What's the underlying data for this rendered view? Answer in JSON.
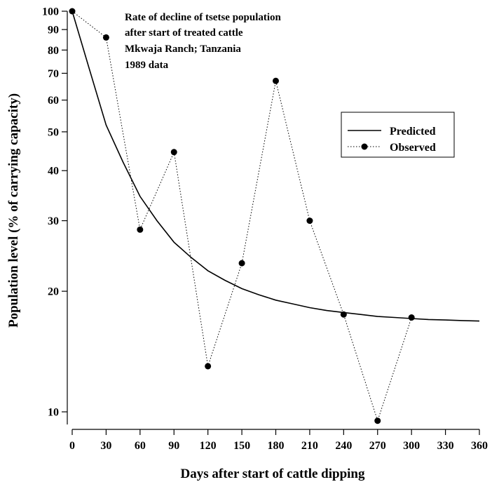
{
  "chart_data": {
    "type": "line",
    "title_lines": [
      "Rate of decline of tsetse population",
      "after start of treated cattle",
      "Mkwaja Ranch; Tanzania",
      "1989 data"
    ],
    "xlabel": "Days after start of cattle dipping",
    "ylabel": "Population level (% of carrying capacity)",
    "x_ticks": [
      0,
      30,
      60,
      90,
      120,
      150,
      180,
      210,
      240,
      270,
      300,
      330,
      360
    ],
    "y_ticks": [
      10,
      20,
      30,
      40,
      50,
      60,
      70,
      80,
      90,
      100
    ],
    "xlim": [
      0,
      360
    ],
    "ylim": [
      9.3,
      100
    ],
    "y_scale": "log",
    "grid": false,
    "legend_position": "right",
    "series": [
      {
        "name": "Predicted",
        "style": "solid",
        "x": [
          0,
          15,
          30,
          45,
          60,
          75,
          90,
          105,
          120,
          135,
          150,
          165,
          180,
          195,
          210,
          225,
          240,
          255,
          270,
          285,
          300,
          315,
          330,
          345,
          360
        ],
        "y": [
          100,
          72,
          52,
          42,
          34.5,
          30,
          26.5,
          24.3,
          22.5,
          21.3,
          20.3,
          19.6,
          19.0,
          18.6,
          18.2,
          17.9,
          17.7,
          17.5,
          17.3,
          17.2,
          17.1,
          17.0,
          16.95,
          16.9,
          16.85
        ]
      },
      {
        "name": "Observed",
        "style": "dotted",
        "marker": "circle",
        "x": [
          0,
          30,
          60,
          90,
          120,
          150,
          180,
          210,
          240,
          270,
          300
        ],
        "y": [
          100,
          86,
          28.5,
          44.5,
          13.0,
          23.5,
          67,
          30,
          17.5,
          9.5,
          17.2
        ]
      }
    ]
  }
}
